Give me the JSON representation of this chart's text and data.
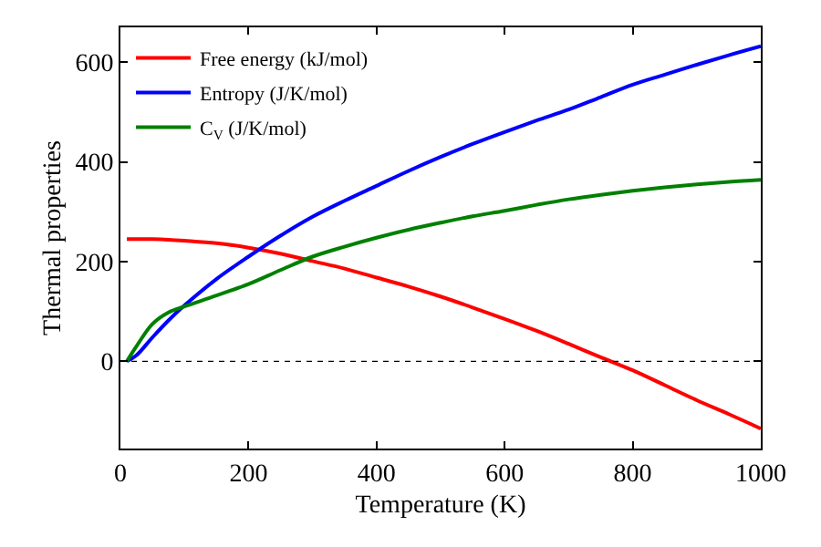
{
  "chart_data": {
    "type": "line",
    "xlabel": "Temperature (K)",
    "ylabel": "Thermal properties",
    "x": [
      10,
      25,
      50,
      75,
      100,
      150,
      200,
      250,
      300,
      350,
      400,
      450,
      500,
      550,
      600,
      650,
      700,
      750,
      800,
      850,
      900,
      950,
      1000
    ],
    "series": [
      {
        "name": "Free energy (kJ/mol)",
        "color": "#ff0000",
        "values": [
          245,
          245,
          245,
          244,
          242,
          237,
          228,
          216,
          201,
          186,
          168,
          150,
          130,
          108,
          85,
          61,
          35,
          8,
          -18,
          -48,
          -78,
          -106,
          -135
        ]
      },
      {
        "name": "Entropy (J/K/mol)",
        "color": "#0000ff",
        "values": [
          0,
          12,
          48,
          82,
          112,
          165,
          210,
          252,
          290,
          322,
          352,
          382,
          410,
          436,
          460,
          483,
          505,
          530,
          555,
          575,
          595,
          614,
          632
        ]
      },
      {
        "name": "C$_{V}$ (J/K/mol)",
        "color": "#008000",
        "values": [
          0,
          30,
          75,
          98,
          110,
          132,
          155,
          183,
          210,
          230,
          248,
          264,
          278,
          291,
          302,
          314,
          325,
          334,
          342,
          349,
          355,
          360,
          364
        ]
      }
    ],
    "xlim": [
      0,
      1000
    ],
    "xticks": [
      0,
      200,
      400,
      600,
      800,
      1000
    ],
    "ylim": [
      -175,
      670
    ],
    "yticks": [
      0,
      200,
      400,
      600
    ],
    "ref_lines": [
      {
        "axis": "y",
        "value": 0,
        "color": "#000000",
        "line_style": "dotted"
      }
    ],
    "legend": "top left",
    "line_style": "solid",
    "marker": "none"
  }
}
